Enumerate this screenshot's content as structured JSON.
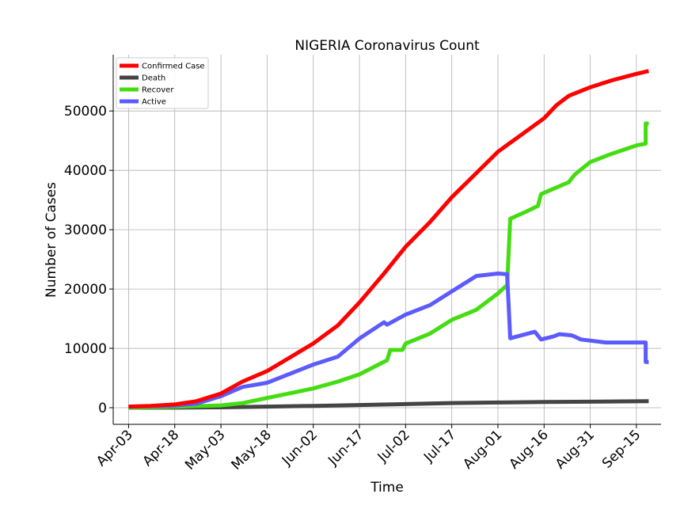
{
  "chart_data": {
    "type": "line",
    "title": "NIGERIA Coronavirus Count",
    "xlabel": "Time",
    "ylabel": "Number of Cases",
    "x_start": "2020-04-03",
    "x_end": "2020-09-19",
    "xlim": [
      "2020-03-29",
      "2020-09-23"
    ],
    "ylim": [
      -2800,
      59500
    ],
    "x_ticks": [
      {
        "date": "2020-04-03",
        "label": "Apr-03"
      },
      {
        "date": "2020-04-18",
        "label": "Apr-18"
      },
      {
        "date": "2020-05-03",
        "label": "May-03"
      },
      {
        "date": "2020-05-18",
        "label": "May-18"
      },
      {
        "date": "2020-06-02",
        "label": "Jun-02"
      },
      {
        "date": "2020-06-17",
        "label": "Jun-17"
      },
      {
        "date": "2020-07-02",
        "label": "Jul-02"
      },
      {
        "date": "2020-07-17",
        "label": "Jul-17"
      },
      {
        "date": "2020-08-01",
        "label": "Aug-01"
      },
      {
        "date": "2020-08-16",
        "label": "Aug-16"
      },
      {
        "date": "2020-08-31",
        "label": "Aug-31"
      },
      {
        "date": "2020-09-15",
        "label": "Sep-15"
      }
    ],
    "y_ticks": [
      0,
      10000,
      20000,
      30000,
      40000,
      50000
    ],
    "grid": true,
    "legend_position": "top-left",
    "series": [
      {
        "name": "Confirmed Case",
        "color": "#ff0000",
        "points": [
          [
            "2020-04-03",
            184
          ],
          [
            "2020-04-10",
            305
          ],
          [
            "2020-04-18",
            542
          ],
          [
            "2020-04-25",
            1095
          ],
          [
            "2020-05-03",
            2388
          ],
          [
            "2020-05-10",
            4399
          ],
          [
            "2020-05-18",
            6175
          ],
          [
            "2020-05-25",
            8344
          ],
          [
            "2020-06-02",
            10819
          ],
          [
            "2020-06-10",
            13873
          ],
          [
            "2020-06-17",
            17735
          ],
          [
            "2020-06-25",
            22614
          ],
          [
            "2020-07-02",
            27110
          ],
          [
            "2020-07-10",
            31323
          ],
          [
            "2020-07-17",
            35454
          ],
          [
            "2020-07-25",
            39539
          ],
          [
            "2020-08-01",
            43151
          ],
          [
            "2020-08-09",
            46140
          ],
          [
            "2020-08-16",
            48770
          ],
          [
            "2020-08-20",
            50964
          ],
          [
            "2020-08-24",
            52548
          ],
          [
            "2020-08-31",
            54008
          ],
          [
            "2020-09-07",
            55160
          ],
          [
            "2020-09-15",
            56256
          ],
          [
            "2020-09-19",
            56735
          ]
        ]
      },
      {
        "name": "Death",
        "color": "#444444",
        "points": [
          [
            "2020-04-03",
            2
          ],
          [
            "2020-04-18",
            19
          ],
          [
            "2020-05-03",
            68
          ],
          [
            "2020-05-18",
            192
          ],
          [
            "2020-06-02",
            314
          ],
          [
            "2020-06-17",
            455
          ],
          [
            "2020-07-02",
            616
          ],
          [
            "2020-07-17",
            789
          ],
          [
            "2020-08-01",
            879
          ],
          [
            "2020-08-16",
            975
          ],
          [
            "2020-08-31",
            1011
          ],
          [
            "2020-09-15",
            1088
          ],
          [
            "2020-09-19",
            1094
          ]
        ]
      },
      {
        "name": "Recover",
        "color": "#44dd11",
        "points": [
          [
            "2020-04-03",
            20
          ],
          [
            "2020-04-18",
            159
          ],
          [
            "2020-05-03",
            385
          ],
          [
            "2020-05-10",
            778
          ],
          [
            "2020-05-18",
            1644
          ],
          [
            "2020-06-02",
            3239
          ],
          [
            "2020-06-10",
            4408
          ],
          [
            "2020-06-17",
            5623
          ],
          [
            "2020-06-26",
            8000
          ],
          [
            "2020-06-27",
            9746
          ],
          [
            "2020-07-01",
            9746
          ],
          [
            "2020-07-02",
            10801
          ],
          [
            "2020-07-10",
            12500
          ],
          [
            "2020-07-17",
            14800
          ],
          [
            "2020-07-25",
            16500
          ],
          [
            "2020-08-01",
            19270
          ],
          [
            "2020-08-04",
            20663
          ],
          [
            "2020-08-05",
            31851
          ],
          [
            "2020-08-10",
            33000
          ],
          [
            "2020-08-14",
            34000
          ],
          [
            "2020-08-15",
            36000
          ],
          [
            "2020-08-24",
            38000
          ],
          [
            "2020-08-26",
            39300
          ],
          [
            "2020-08-31",
            41400
          ],
          [
            "2020-09-07",
            42800
          ],
          [
            "2020-09-15",
            44200
          ],
          [
            "2020-09-18",
            44500
          ],
          [
            "2020-09-18",
            47900
          ],
          [
            "2020-09-19",
            47900
          ]
        ]
      },
      {
        "name": "Active",
        "color": "#5b5bff",
        "points": [
          [
            "2020-04-03",
            162
          ],
          [
            "2020-04-18",
            364
          ],
          [
            "2020-04-25",
            700
          ],
          [
            "2020-05-03",
            1935
          ],
          [
            "2020-05-10",
            3500
          ],
          [
            "2020-05-18",
            4200
          ],
          [
            "2020-06-02",
            7266
          ],
          [
            "2020-06-10",
            8600
          ],
          [
            "2020-06-17",
            11657
          ],
          [
            "2020-06-25",
            14400
          ],
          [
            "2020-06-26",
            14000
          ],
          [
            "2020-07-02",
            15693
          ],
          [
            "2020-07-10",
            17300
          ],
          [
            "2020-07-17",
            19600
          ],
          [
            "2020-07-25",
            22200
          ],
          [
            "2020-08-01",
            22612
          ],
          [
            "2020-08-04",
            22500
          ],
          [
            "2020-08-05",
            11700
          ],
          [
            "2020-08-13",
            12800
          ],
          [
            "2020-08-15",
            11500
          ],
          [
            "2020-08-19",
            12000
          ],
          [
            "2020-08-21",
            12400
          ],
          [
            "2020-08-25",
            12200
          ],
          [
            "2020-08-28",
            11500
          ],
          [
            "2020-09-05",
            11000
          ],
          [
            "2020-09-18",
            11000
          ],
          [
            "2020-09-18",
            7700
          ],
          [
            "2020-09-19",
            7700
          ]
        ]
      }
    ]
  }
}
